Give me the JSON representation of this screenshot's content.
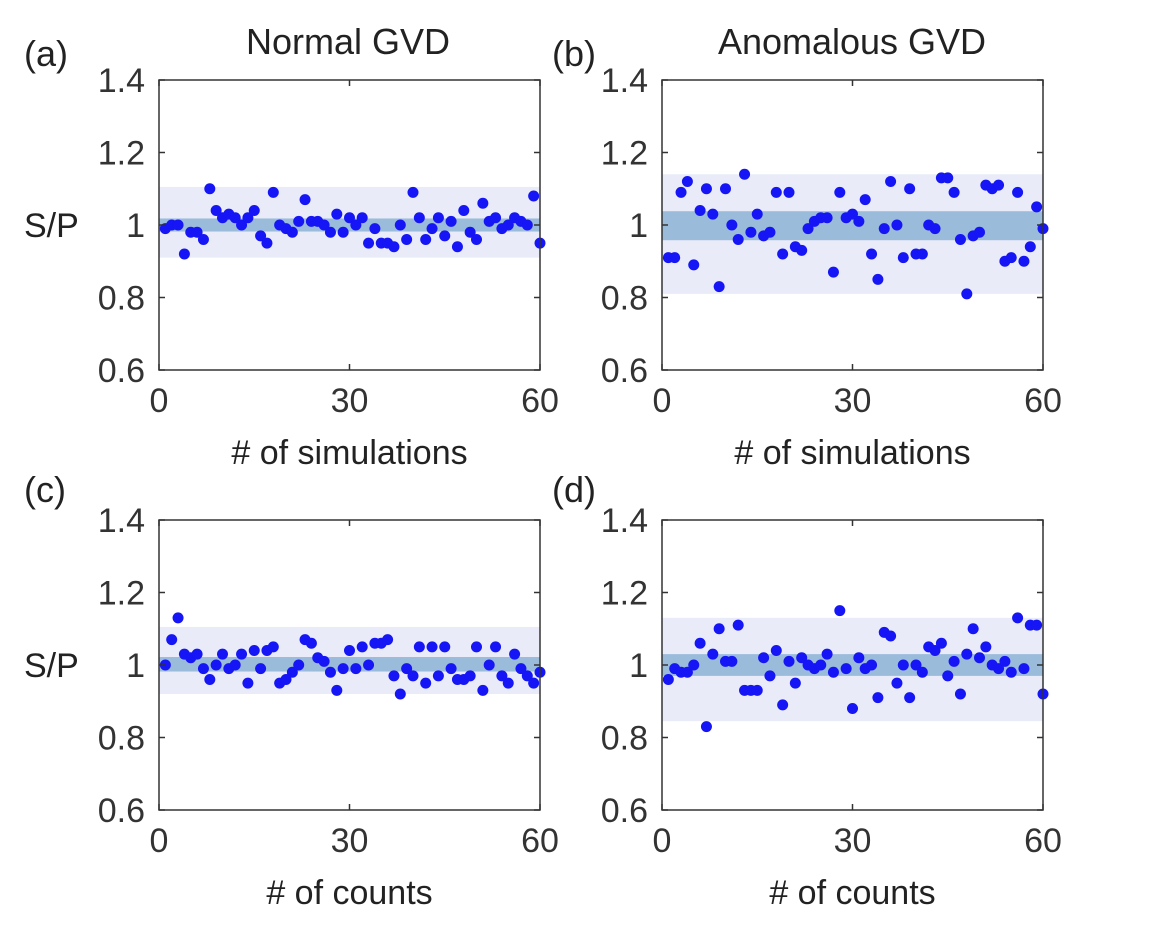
{
  "figure": {
    "column_titles": [
      "Normal GVD",
      "Anomalous GVD"
    ],
    "colors": {
      "points": "#1515f5",
      "outer_band": "#e9ecf8",
      "inner_band": "#9bbbdb",
      "axes": "#333333"
    }
  },
  "chart_data": [
    {
      "panel": "(a)",
      "type": "scatter",
      "title": "Normal GVD",
      "xlabel": "# of simulations",
      "ylabel": "S/P",
      "xlim": [
        0,
        60
      ],
      "ylim": [
        0.6,
        1.4
      ],
      "xticks": [
        "0",
        "30",
        "60"
      ],
      "yticks": [
        "0.6",
        "0.8",
        "1",
        "1.2",
        "1.4"
      ],
      "outer_band": [
        0.91,
        1.105
      ],
      "inner_band": [
        0.982,
        1.018
      ],
      "x": [
        1,
        2,
        3,
        4,
        5,
        6,
        7,
        8,
        9,
        10,
        11,
        12,
        13,
        14,
        15,
        16,
        17,
        18,
        19,
        20,
        21,
        22,
        23,
        24,
        25,
        26,
        27,
        28,
        29,
        30,
        31,
        32,
        33,
        34,
        35,
        36,
        37,
        38,
        39,
        40,
        41,
        42,
        43,
        44,
        45,
        46,
        47,
        48,
        49,
        50,
        51,
        52,
        53,
        54,
        55,
        56,
        57,
        58,
        59,
        60
      ],
      "y": [
        0.99,
        1.0,
        1.0,
        0.92,
        0.98,
        0.98,
        0.96,
        1.1,
        1.04,
        1.02,
        1.03,
        1.02,
        1.0,
        1.02,
        1.04,
        0.97,
        0.95,
        1.09,
        1.0,
        0.99,
        0.98,
        1.01,
        1.07,
        1.01,
        1.01,
        1.0,
        0.98,
        1.03,
        0.98,
        1.02,
        1.0,
        1.02,
        0.95,
        0.99,
        0.95,
        0.95,
        0.94,
        1.0,
        0.96,
        1.09,
        1.02,
        0.96,
        0.99,
        1.02,
        0.97,
        1.01,
        0.94,
        1.04,
        0.98,
        0.96,
        1.06,
        1.01,
        1.02,
        0.99,
        1.0,
        1.02,
        1.01,
        1.0,
        1.08,
        0.95
      ]
    },
    {
      "panel": "(b)",
      "type": "scatter",
      "title": "Anomalous GVD",
      "xlabel": "# of simulations",
      "ylabel": "",
      "xlim": [
        0,
        60
      ],
      "ylim": [
        0.6,
        1.4
      ],
      "xticks": [
        "0",
        "30",
        "60"
      ],
      "yticks": [
        "0.6",
        "0.8",
        "1",
        "1.2",
        "1.4"
      ],
      "outer_band": [
        0.81,
        1.14
      ],
      "inner_band": [
        0.958,
        1.038
      ],
      "x": [
        1,
        2,
        3,
        4,
        5,
        6,
        7,
        8,
        9,
        10,
        11,
        12,
        13,
        14,
        15,
        16,
        17,
        18,
        19,
        20,
        21,
        22,
        23,
        24,
        25,
        26,
        27,
        28,
        29,
        30,
        31,
        32,
        33,
        34,
        35,
        36,
        37,
        38,
        39,
        40,
        41,
        42,
        43,
        44,
        45,
        46,
        47,
        48,
        49,
        50,
        51,
        52,
        53,
        54,
        55,
        56,
        57,
        58,
        59,
        60
      ],
      "y": [
        0.91,
        0.91,
        1.09,
        1.12,
        0.89,
        1.04,
        1.1,
        1.03,
        0.83,
        1.1,
        1.0,
        0.96,
        1.14,
        0.98,
        1.03,
        0.97,
        0.98,
        1.09,
        0.92,
        1.09,
        0.94,
        0.93,
        0.99,
        1.01,
        1.02,
        1.02,
        0.87,
        1.09,
        1.02,
        1.03,
        1.01,
        1.07,
        0.92,
        0.85,
        0.99,
        1.12,
        1.0,
        0.91,
        1.1,
        0.92,
        0.92,
        1.0,
        0.99,
        1.13,
        1.13,
        1.09,
        0.96,
        0.81,
        0.97,
        0.98,
        1.11,
        1.1,
        1.11,
        0.9,
        0.91,
        1.09,
        0.9,
        0.94,
        1.05,
        0.99
      ]
    },
    {
      "panel": "(c)",
      "type": "scatter",
      "title": "",
      "xlabel": "# of counts",
      "ylabel": "S/P",
      "xlim": [
        0,
        60
      ],
      "ylim": [
        0.6,
        1.4
      ],
      "xticks": [
        "0",
        "30",
        "60"
      ],
      "yticks": [
        "0.6",
        "0.8",
        "1",
        "1.2",
        "1.4"
      ],
      "outer_band": [
        0.92,
        1.105
      ],
      "inner_band": [
        0.982,
        1.022
      ],
      "x": [
        1,
        2,
        3,
        4,
        5,
        6,
        7,
        8,
        9,
        10,
        11,
        12,
        13,
        14,
        15,
        16,
        17,
        18,
        19,
        20,
        21,
        22,
        23,
        24,
        25,
        26,
        27,
        28,
        29,
        30,
        31,
        32,
        33,
        34,
        35,
        36,
        37,
        38,
        39,
        40,
        41,
        42,
        43,
        44,
        45,
        46,
        47,
        48,
        49,
        50,
        51,
        52,
        53,
        54,
        55,
        56,
        57,
        58,
        59,
        60
      ],
      "y": [
        1.0,
        1.07,
        1.13,
        1.03,
        1.02,
        1.03,
        0.99,
        0.96,
        1.0,
        1.03,
        0.99,
        1.0,
        1.03,
        0.95,
        1.04,
        0.99,
        1.04,
        1.05,
        0.95,
        0.96,
        0.98,
        1.0,
        1.07,
        1.06,
        1.02,
        1.01,
        0.98,
        0.93,
        0.99,
        1.04,
        0.99,
        1.05,
        1.0,
        1.06,
        1.06,
        1.07,
        0.97,
        0.92,
        0.99,
        0.97,
        1.05,
        0.95,
        1.05,
        0.97,
        1.05,
        0.99,
        0.96,
        0.96,
        0.97,
        1.05,
        0.93,
        1.0,
        1.05,
        0.97,
        0.95,
        1.03,
        0.99,
        0.97,
        0.95,
        0.98
      ]
    },
    {
      "panel": "(d)",
      "type": "scatter",
      "title": "",
      "xlabel": "# of counts",
      "ylabel": "",
      "xlim": [
        0,
        60
      ],
      "ylim": [
        0.6,
        1.4
      ],
      "xticks": [
        "0",
        "30",
        "60"
      ],
      "yticks": [
        "0.6",
        "0.8",
        "1",
        "1.2",
        "1.4"
      ],
      "outer_band": [
        0.845,
        1.13
      ],
      "inner_band": [
        0.97,
        1.03
      ],
      "x": [
        1,
        2,
        3,
        4,
        5,
        6,
        7,
        8,
        9,
        10,
        11,
        12,
        13,
        14,
        15,
        16,
        17,
        18,
        19,
        20,
        21,
        22,
        23,
        24,
        25,
        26,
        27,
        28,
        29,
        30,
        31,
        32,
        33,
        34,
        35,
        36,
        37,
        38,
        39,
        40,
        41,
        42,
        43,
        44,
        45,
        46,
        47,
        48,
        49,
        50,
        51,
        52,
        53,
        54,
        55,
        56,
        57,
        58,
        59,
        60
      ],
      "y": [
        0.96,
        0.99,
        0.98,
        0.98,
        1.0,
        1.06,
        0.83,
        1.03,
        1.1,
        1.01,
        1.01,
        1.11,
        0.93,
        0.93,
        0.93,
        1.02,
        0.97,
        1.04,
        0.89,
        1.01,
        0.95,
        1.02,
        1.0,
        0.99,
        1.0,
        1.03,
        0.98,
        1.15,
        0.99,
        0.88,
        1.02,
        0.99,
        1.0,
        0.91,
        1.09,
        1.08,
        0.95,
        1.0,
        0.91,
        1.0,
        0.98,
        1.05,
        1.04,
        1.06,
        0.97,
        1.01,
        0.92,
        1.03,
        1.1,
        1.02,
        1.05,
        1.0,
        0.99,
        1.01,
        0.98,
        1.13,
        0.99,
        1.11,
        1.11,
        0.92
      ]
    }
  ]
}
